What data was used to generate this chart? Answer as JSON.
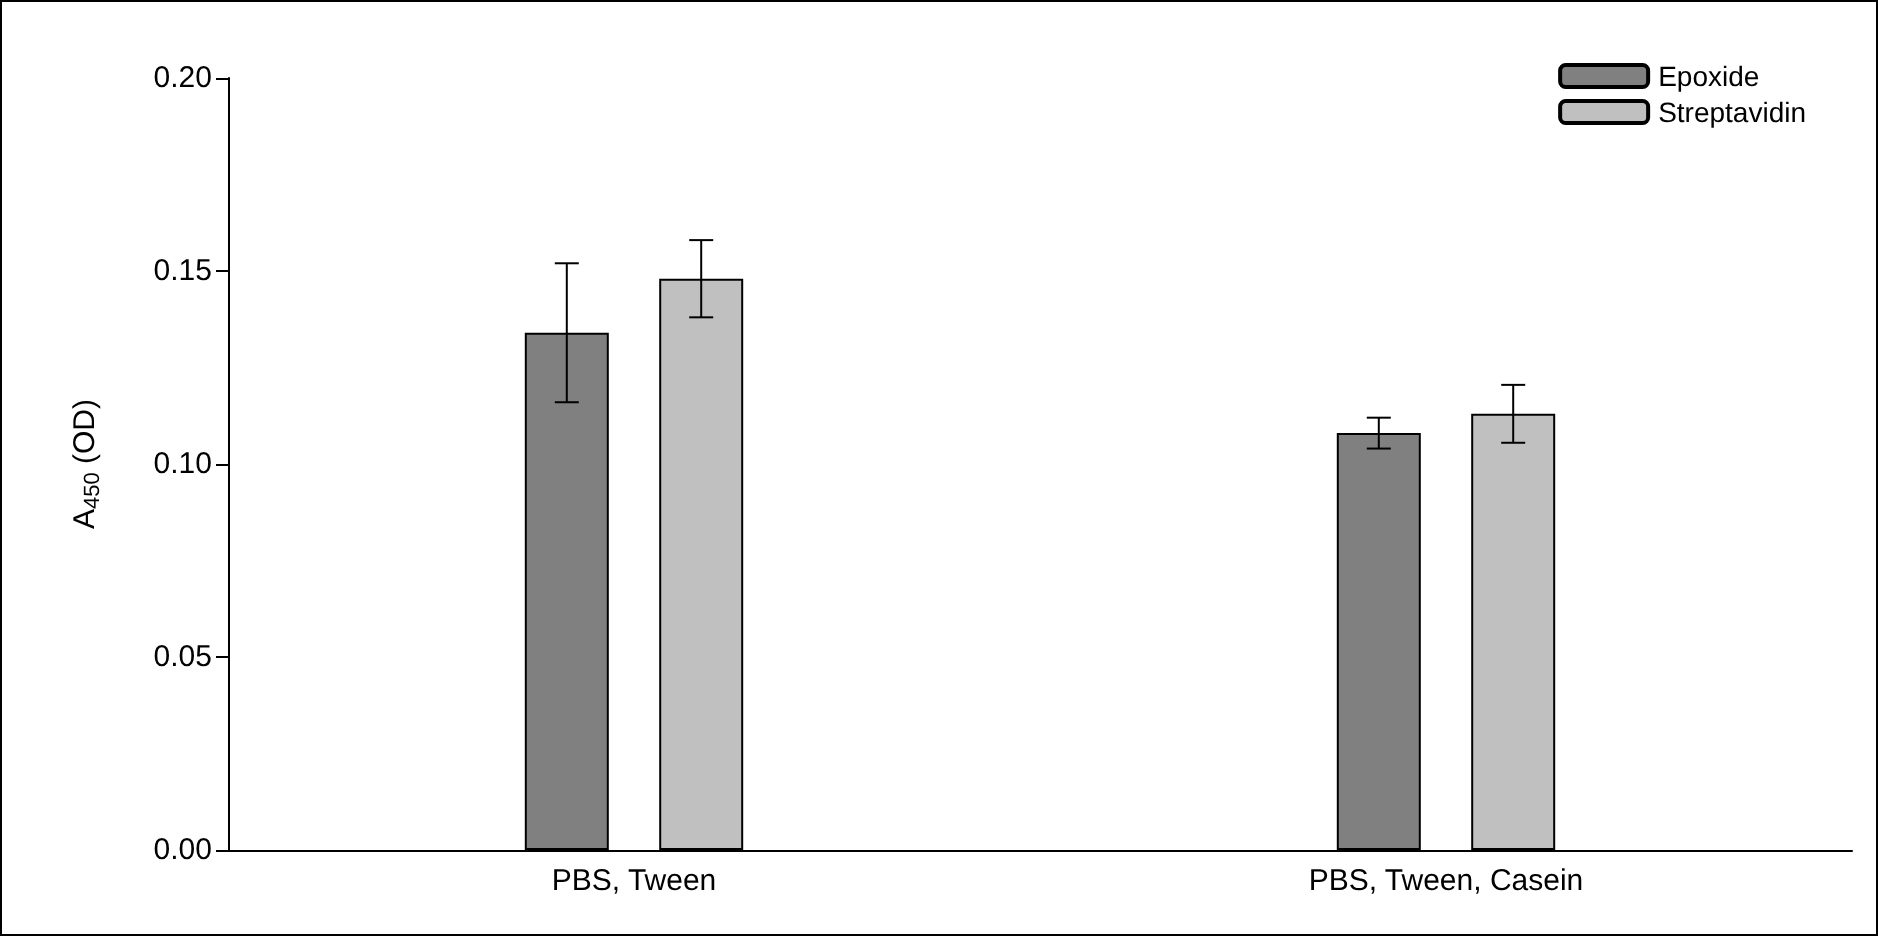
{
  "chart_data": {
    "type": "bar",
    "ylabel": "A$_{450}$ (OD)",
    "categories": [
      "PBS, Tween",
      "PBS, Tween, Casein"
    ],
    "series": [
      {
        "name": "Epoxide",
        "color": "#808080",
        "values": [
          0.134,
          0.108
        ],
        "errors": [
          0.018,
          0.004
        ]
      },
      {
        "name": "Streptavidin",
        "color": "#c0c0c0",
        "values": [
          0.148,
          0.113
        ],
        "errors": [
          0.01,
          0.0075
        ]
      }
    ],
    "ylim": [
      0,
      0.2
    ],
    "yticks": [
      {
        "value": 0,
        "label": "0.00"
      },
      {
        "value": 0.05,
        "label": "0.05"
      },
      {
        "value": 0.1,
        "label": "0.10"
      },
      {
        "value": 0.15,
        "label": "0.15"
      },
      {
        "value": 0.2,
        "label": "0.20"
      }
    ],
    "grid": false,
    "legend": "top right"
  }
}
